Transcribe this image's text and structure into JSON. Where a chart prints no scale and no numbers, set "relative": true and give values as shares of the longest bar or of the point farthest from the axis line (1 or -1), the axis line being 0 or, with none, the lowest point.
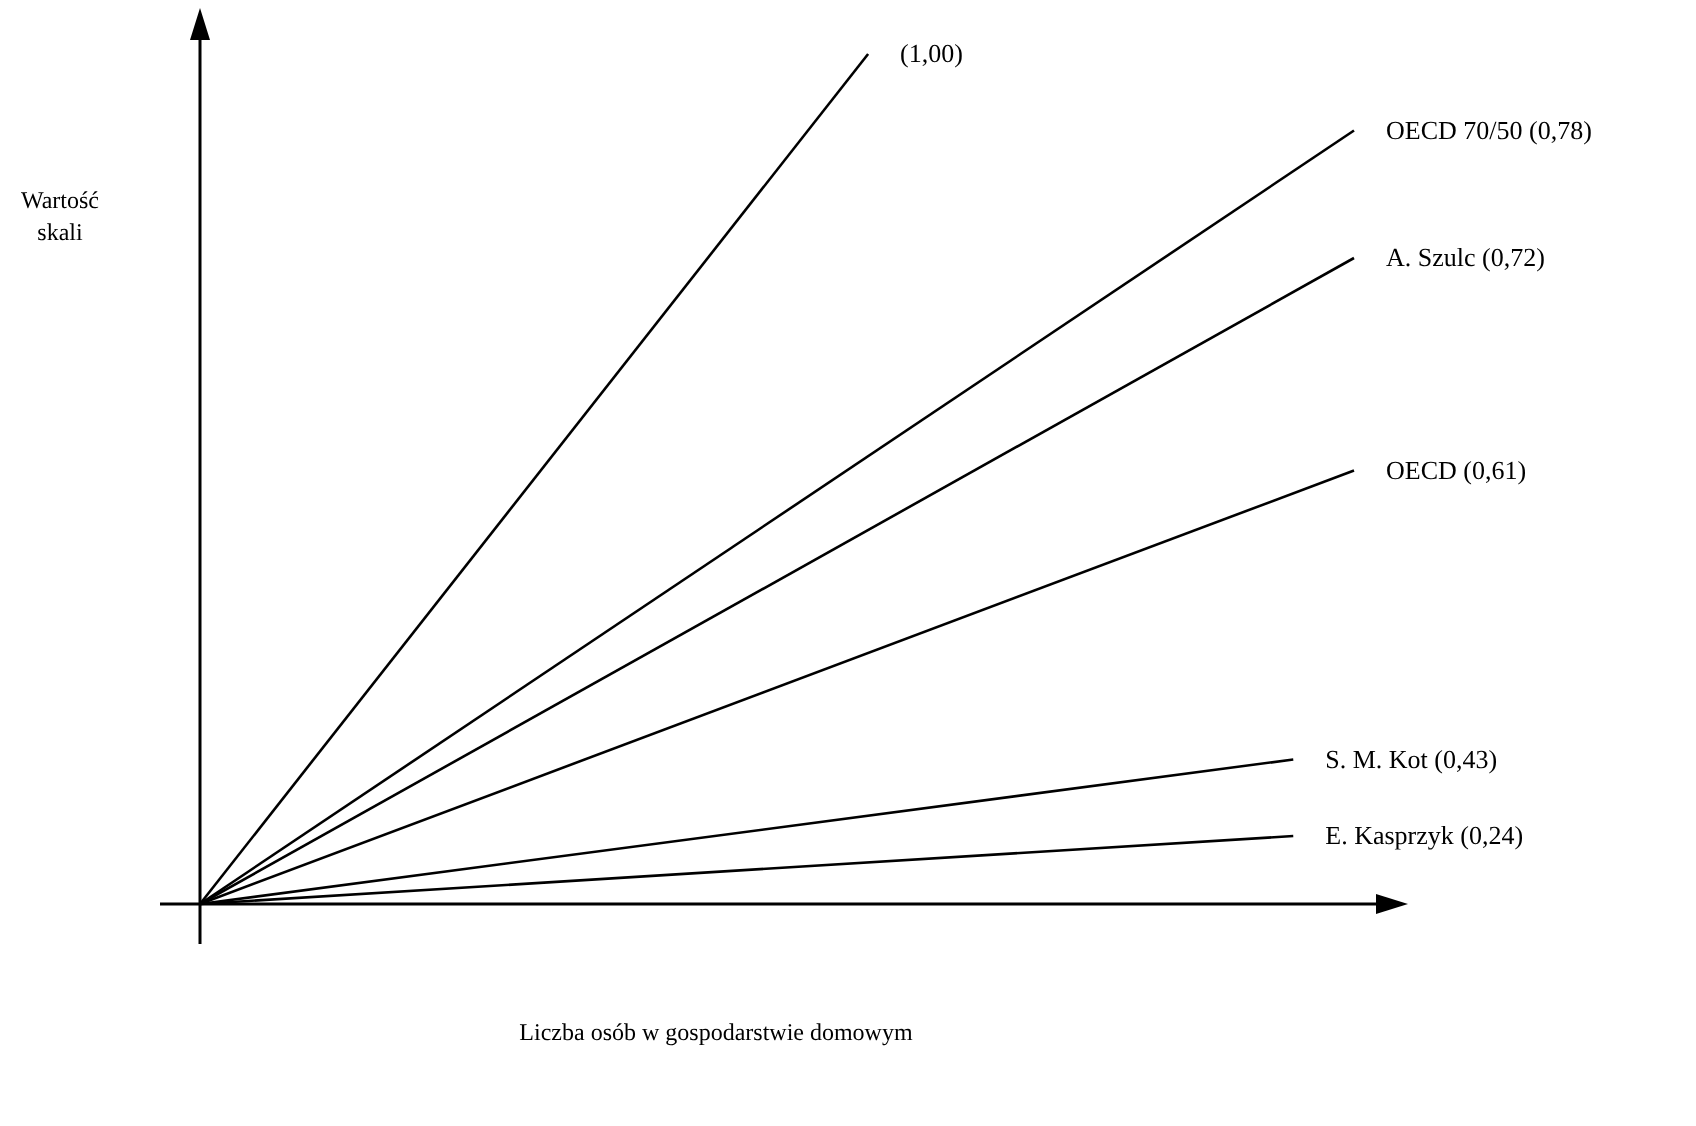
{
  "chart_data": {
    "type": "line",
    "relative": true,
    "xlabel": "Liczba osób w gospodarstwie domowym",
    "ylabel": "Wartość skali",
    "categories": [
      null,
      null,
      null,
      null,
      null,
      null,
      null,
      null,
      null,
      null,
      null,
      null,
      null,
      null,
      null,
      null,
      null,
      null,
      null,
      null
    ],
    "series": [
      {
        "name": "(1,00)",
        "color": "#000000",
        "values": [
          0,
          null,
          null,
          null,
          null,
          null,
          null,
          null,
          null,
          null,
          null,
          1,
          null,
          null,
          null,
          null,
          null,
          null,
          null,
          null
        ]
      },
      {
        "name": "OECD 70/50 (0,78)",
        "color": "#000000",
        "values": [
          0,
          null,
          null,
          null,
          null,
          null,
          null,
          null,
          null,
          null,
          null,
          null,
          null,
          null,
          null,
          null,
          null,
          null,
          null,
          0.91
        ]
      },
      {
        "name": "A. Szulc (0,72)",
        "color": "#000000",
        "values": [
          0,
          null,
          null,
          null,
          null,
          null,
          null,
          null,
          null,
          null,
          null,
          null,
          null,
          null,
          null,
          null,
          null,
          null,
          null,
          0.76
        ]
      },
      {
        "name": "OECD (0,61)",
        "color": "#000000",
        "values": [
          0,
          null,
          null,
          null,
          null,
          null,
          null,
          null,
          null,
          null,
          null,
          null,
          null,
          null,
          null,
          null,
          null,
          null,
          null,
          0.51
        ]
      },
      {
        "name": "S. M. Kot (0,43)",
        "color": "#000000",
        "values": [
          0,
          null,
          null,
          null,
          null,
          null,
          null,
          null,
          null,
          null,
          null,
          null,
          null,
          null,
          null,
          null,
          null,
          null,
          0.17,
          null
        ]
      },
      {
        "name": "E. Kasprzyk (0,24)",
        "color": "#000000",
        "values": [
          0,
          null,
          null,
          null,
          null,
          null,
          null,
          null,
          null,
          null,
          null,
          null,
          null,
          null,
          null,
          null,
          null,
          null,
          0.08,
          null
        ]
      }
    ]
  }
}
